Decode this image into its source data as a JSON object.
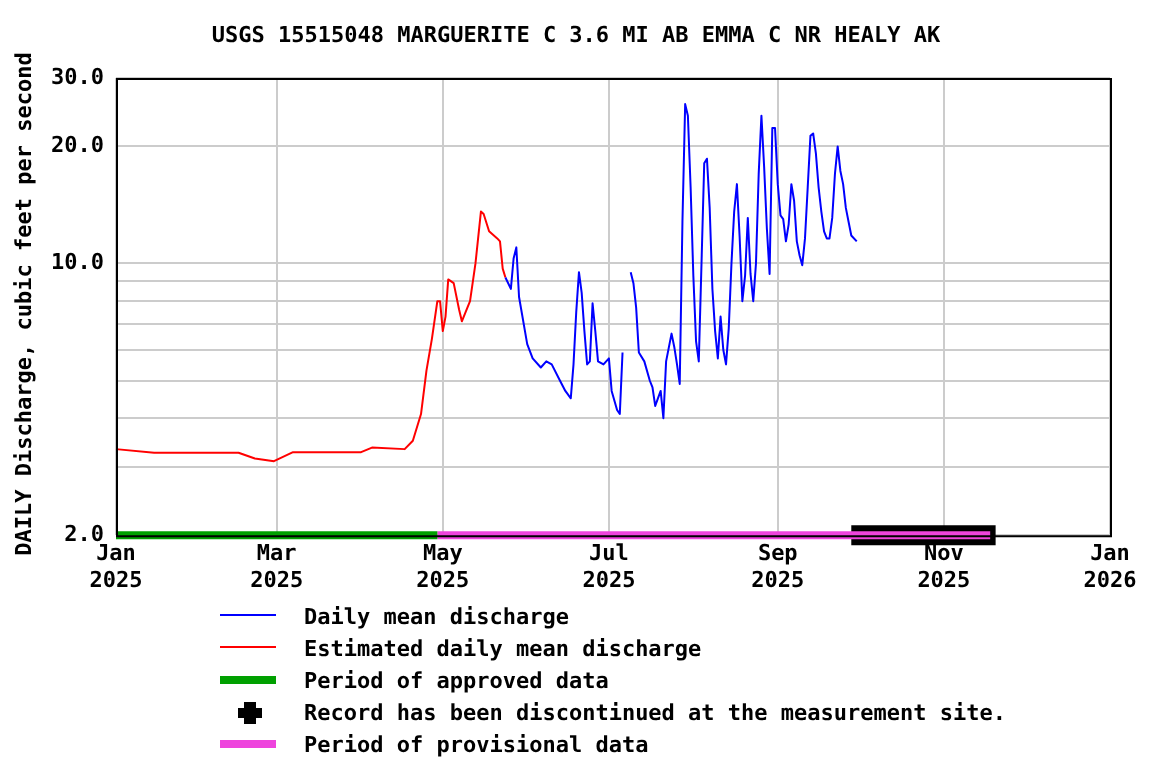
{
  "chart_data": {
    "type": "line",
    "title": "USGS 15515048 MARGUERITE C 3.6 MI AB EMMA C NR HEALY AK",
    "ylabel": "DAILY Discharge, cubic feet per second",
    "log": "y",
    "grid": true,
    "legend": "bottom",
    "marker": "none",
    "line_style": "solid",
    "xlim": [
      "2025-01-01",
      "2026-01-01"
    ],
    "xticks": [
      {
        "value": "2025-01-01",
        "label": "Jan 2025"
      },
      {
        "value": "2025-03-01",
        "label": "Mar 2025"
      },
      {
        "value": "2025-05-01",
        "label": "May 2025"
      },
      {
        "value": "2025-07-01",
        "label": "Jul 2025"
      },
      {
        "value": "2025-09-01",
        "label": "Sep 2025"
      },
      {
        "value": "2025-11-01",
        "label": "Nov 2025"
      },
      {
        "value": "2026-01-01",
        "label": "Jan 2026"
      }
    ],
    "ylim": [
      2,
      30
    ],
    "yticks": [
      {
        "value": 2,
        "label": "2.0"
      },
      {
        "value": 3,
        "label": null
      },
      {
        "value": 4,
        "label": null
      },
      {
        "value": 5,
        "label": null
      },
      {
        "value": 6,
        "label": null
      },
      {
        "value": 7,
        "label": null
      },
      {
        "value": 8,
        "label": null
      },
      {
        "value": 9,
        "label": null
      },
      {
        "value": 10,
        "label": "10.0"
      },
      {
        "value": 20,
        "label": "20.0"
      },
      {
        "value": 30,
        "label": "30.0"
      }
    ],
    "series": [
      {
        "name": "Daily mean discharge",
        "color": "#0000ff",
        "x": [
          "2025-05-24",
          "2025-05-26",
          "2025-05-27",
          "2025-05-28",
          "2025-05-29",
          "2025-06-01",
          "2025-06-03",
          "2025-06-06",
          "2025-06-08",
          "2025-06-10",
          "2025-06-13",
          "2025-06-15",
          "2025-06-17",
          "2025-06-18",
          "2025-06-19",
          "2025-06-20",
          "2025-06-21",
          "2025-06-22",
          "2025-06-23",
          "2025-06-24",
          "2025-06-25",
          "2025-06-26",
          "2025-06-27",
          "2025-06-29",
          "2025-07-01",
          "2025-07-02",
          "2025-07-04",
          "2025-07-05",
          "2025-07-06",
          "2025-07-07",
          "2025-07-09",
          "2025-07-10",
          "2025-07-11",
          "2025-07-12",
          "2025-07-14",
          "2025-07-16",
          "2025-07-17",
          "2025-07-18",
          "2025-07-19",
          "2025-07-20",
          "2025-07-21",
          "2025-07-22",
          "2025-07-24",
          "2025-07-25",
          "2025-07-26",
          "2025-07-27",
          "2025-07-28",
          "2025-07-29",
          "2025-07-30",
          "2025-07-31",
          "2025-08-01",
          "2025-08-02",
          "2025-08-03",
          "2025-08-04",
          "2025-08-05",
          "2025-08-06",
          "2025-08-07",
          "2025-08-08",
          "2025-08-09",
          "2025-08-10",
          "2025-08-11",
          "2025-08-12",
          "2025-08-13",
          "2025-08-14",
          "2025-08-15",
          "2025-08-16",
          "2025-08-17",
          "2025-08-18",
          "2025-08-19",
          "2025-08-20",
          "2025-08-21",
          "2025-08-22",
          "2025-08-23",
          "2025-08-24",
          "2025-08-25",
          "2025-08-26",
          "2025-08-27",
          "2025-08-28",
          "2025-08-29",
          "2025-08-30",
          "2025-08-31",
          "2025-09-01",
          "2025-09-02",
          "2025-09-03",
          "2025-09-04",
          "2025-09-05",
          "2025-09-06",
          "2025-09-07",
          "2025-09-08",
          "2025-09-09",
          "2025-09-10",
          "2025-09-11",
          "2025-09-12",
          "2025-09-13",
          "2025-09-14",
          "2025-09-15",
          "2025-09-16",
          "2025-09-17",
          "2025-09-18",
          "2025-09-19",
          "2025-09-20",
          "2025-09-21",
          "2025-09-22",
          "2025-09-23",
          "2025-09-24",
          "2025-09-25",
          "2025-09-26",
          "2025-09-27",
          "2025-09-28",
          "2025-09-30"
        ],
        "values": [
          9.2,
          8.6,
          10.3,
          11,
          8.2,
          6.2,
          5.7,
          5.4,
          5.6,
          5.5,
          5.0,
          4.7,
          4.5,
          5.5,
          7.5,
          9.5,
          8.4,
          6.7,
          5.5,
          5.6,
          7.9,
          6.7,
          5.6,
          5.5,
          5.7,
          4.7,
          4.2,
          4.1,
          5.9,
          null,
          9.5,
          8.9,
          7.7,
          5.9,
          5.6,
          5.0,
          4.8,
          4.3,
          4.5,
          4.7,
          4.0,
          5.6,
          6.6,
          6.1,
          5.5,
          4.9,
          12.8,
          25.7,
          24,
          15.7,
          9.3,
          6.3,
          5.6,
          10,
          18.1,
          18.6,
          13.9,
          8.6,
          6.7,
          5.7,
          7.3,
          6.0,
          5.5,
          6.8,
          10,
          13.6,
          16,
          11.7,
          8.0,
          9.3,
          13.1,
          9.4,
          8.0,
          10,
          17,
          24,
          17.7,
          12.3,
          9.4,
          22.3,
          22.3,
          16,
          13.3,
          13,
          11.4,
          12.6,
          16,
          14.5,
          11.4,
          10.5,
          9.9,
          11.6,
          15.7,
          21.3,
          21.6,
          19.2,
          15.7,
          13.6,
          12.1,
          11.6,
          11.6,
          13.1,
          17,
          20,
          17.3,
          16,
          13.9,
          12.8,
          11.8,
          11.4
        ]
      },
      {
        "name": "Estimated daily mean discharge",
        "color": "#ff0000",
        "x": [
          "2025-01-01",
          "2025-01-15",
          "2025-02-15",
          "2025-02-21",
          "2025-02-28",
          "2025-03-07",
          "2025-04-01",
          "2025-04-05",
          "2025-04-17",
          "2025-04-20",
          "2025-04-23",
          "2025-04-25",
          "2025-04-27",
          "2025-04-29",
          "2025-04-30",
          "2025-05-01",
          "2025-05-02",
          "2025-05-03",
          "2025-05-05",
          "2025-05-07",
          "2025-05-08",
          "2025-05-11",
          "2025-05-13",
          "2025-05-15",
          "2025-05-16",
          "2025-05-18",
          "2025-05-21",
          "2025-05-22",
          "2025-05-23",
          "2025-05-24"
        ],
        "values": [
          3.33,
          3.26,
          3.26,
          3.15,
          3.1,
          3.27,
          3.27,
          3.36,
          3.33,
          3.5,
          4.1,
          5.3,
          6.4,
          8.0,
          8.0,
          6.7,
          7.3,
          9.1,
          8.9,
          7.6,
          7.1,
          8.0,
          10,
          13.6,
          13.4,
          12.1,
          11.6,
          11.4,
          9.7,
          9.2
        ]
      },
      {
        "name": "Period of approved data",
        "color": "#00a000",
        "x": [
          "2025-01-01",
          "2025-04-29"
        ],
        "values": [
          2,
          2
        ]
      },
      {
        "name": "Record has been discontinued at the measurement site.",
        "color": "#000000",
        "x": [
          "2025-09-28",
          "2025-11-20"
        ],
        "values": [
          2,
          2
        ]
      },
      {
        "name": "Period of provisional data",
        "color": "#ee44dd",
        "x": [
          "2025-04-29",
          "2025-11-18"
        ],
        "values": [
          2,
          2
        ]
      }
    ]
  }
}
